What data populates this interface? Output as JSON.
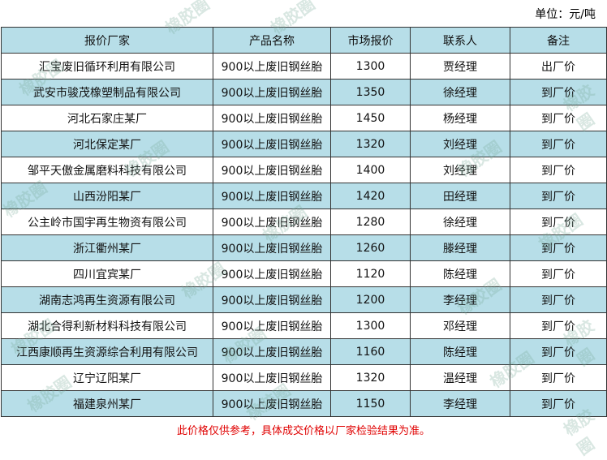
{
  "unit": "单位：元/吨",
  "watermark": "橡胶圈",
  "table": {
    "header": [
      "报价厂家",
      "产品名称",
      "市场报价",
      "联系人",
      "备注"
    ],
    "rows": [
      [
        "汇宝废旧循环利用有限公司",
        "900以上废旧钢丝胎",
        1300,
        "贾经理",
        "出厂价"
      ],
      [
        "武安市骏茂橡塑制品有限公司",
        "900以上废旧钢丝胎",
        1350,
        "徐经理",
        "到厂价"
      ],
      [
        "河北石家庄某厂",
        "900以上废旧钢丝胎",
        1450,
        "杨经理",
        "到厂价"
      ],
      [
        "河北保定某厂",
        "900以上废旧钢丝胎",
        1320,
        "刘经理",
        "到厂价"
      ],
      [
        "邹平天傲金属磨料科技有限公司",
        "900以上废旧钢丝胎",
        1400,
        "刘经理",
        "到厂价"
      ],
      [
        "山西汾阳某厂",
        "900以上废旧钢丝胎",
        1420,
        "田经理",
        "到厂价"
      ],
      [
        "公主岭市国宇再生物资有限公司",
        "900以上废旧钢丝胎",
        1280,
        "徐经理",
        "到厂价"
      ],
      [
        "浙江衢州某厂",
        "900以上废旧钢丝胎",
        1260,
        "滕经理",
        "到厂价"
      ],
      [
        "四川宜宾某厂",
        "900以上废旧钢丝胎",
        1120,
        "陈经理",
        "到厂价"
      ],
      [
        "湖南志鸿再生资源有限公司",
        "900以上废旧钢丝胎",
        1200,
        "李经理",
        "到厂价"
      ],
      [
        "湖北合得利新材料科技有限公司",
        "900以上废旧钢丝胎",
        1300,
        "邓经理",
        "到厂价"
      ],
      [
        "江西康顺再生资源综合利用有限公司",
        "900以上废旧钢丝胎",
        1160,
        "陈经理",
        "到厂价"
      ],
      [
        "辽宁辽阳某厂",
        "900以上废旧钢丝胎",
        1320,
        "温经理",
        "到厂价"
      ],
      [
        "福建泉州某厂",
        "900以上废旧钢丝胎",
        1150,
        "李经理",
        "到厂价"
      ]
    ]
  },
  "note": "此价格仅供参考，具体成交价格以厂家检验结果为准。"
}
